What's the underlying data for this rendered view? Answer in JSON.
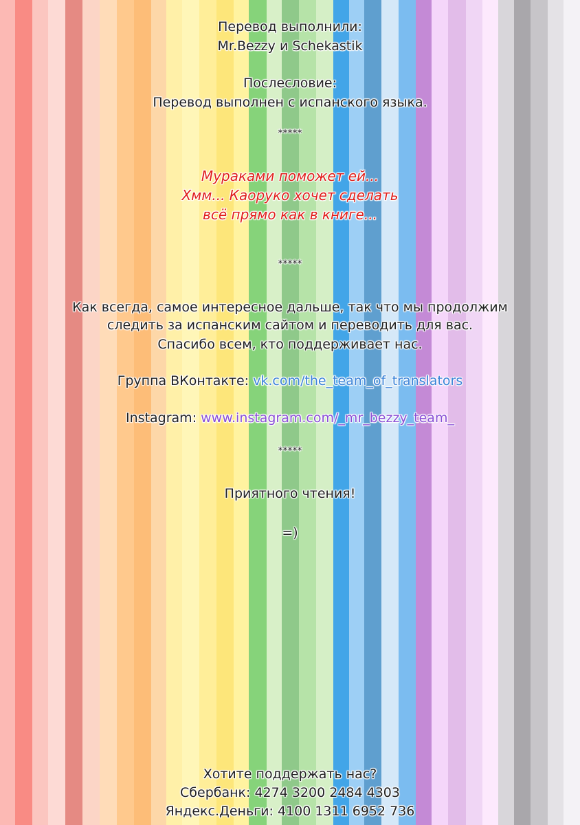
{
  "credits": {
    "heading": "Перевод выполнили:",
    "names": "Mr.Bezzy и Schekastik"
  },
  "afterword": {
    "heading": "Послесловие:",
    "text": "Перевод выполнен с испанского языка."
  },
  "separators": [
    "*****",
    "*****",
    "*****"
  ],
  "teaser": [
    "Мураками поможет ей...",
    "Хмм... Каоруко хочет сделать",
    "всё прямо как в книге..."
  ],
  "message": [
    "Как всегда, самое интересное дальше, так что мы продолжим",
    "следить за испанским сайтом и переводить для вас.",
    "Спасибо всем, кто поддерживает нас."
  ],
  "vk": {
    "label": "Группа ВКонтакте:",
    "link": "vk.com/the_team_of_translators"
  },
  "instagram": {
    "label": "Instagram:",
    "link": "www.instagram.com/_mr_bezzy_team_"
  },
  "closing": "Приятного чтения!",
  "smiley": "=)",
  "support": [
    "Хотите поддержать нас?",
    "Сбербанк: 4274 3200 2484 4303",
    "Яндекс.Деньги: 4100 1311 6952 736"
  ]
}
